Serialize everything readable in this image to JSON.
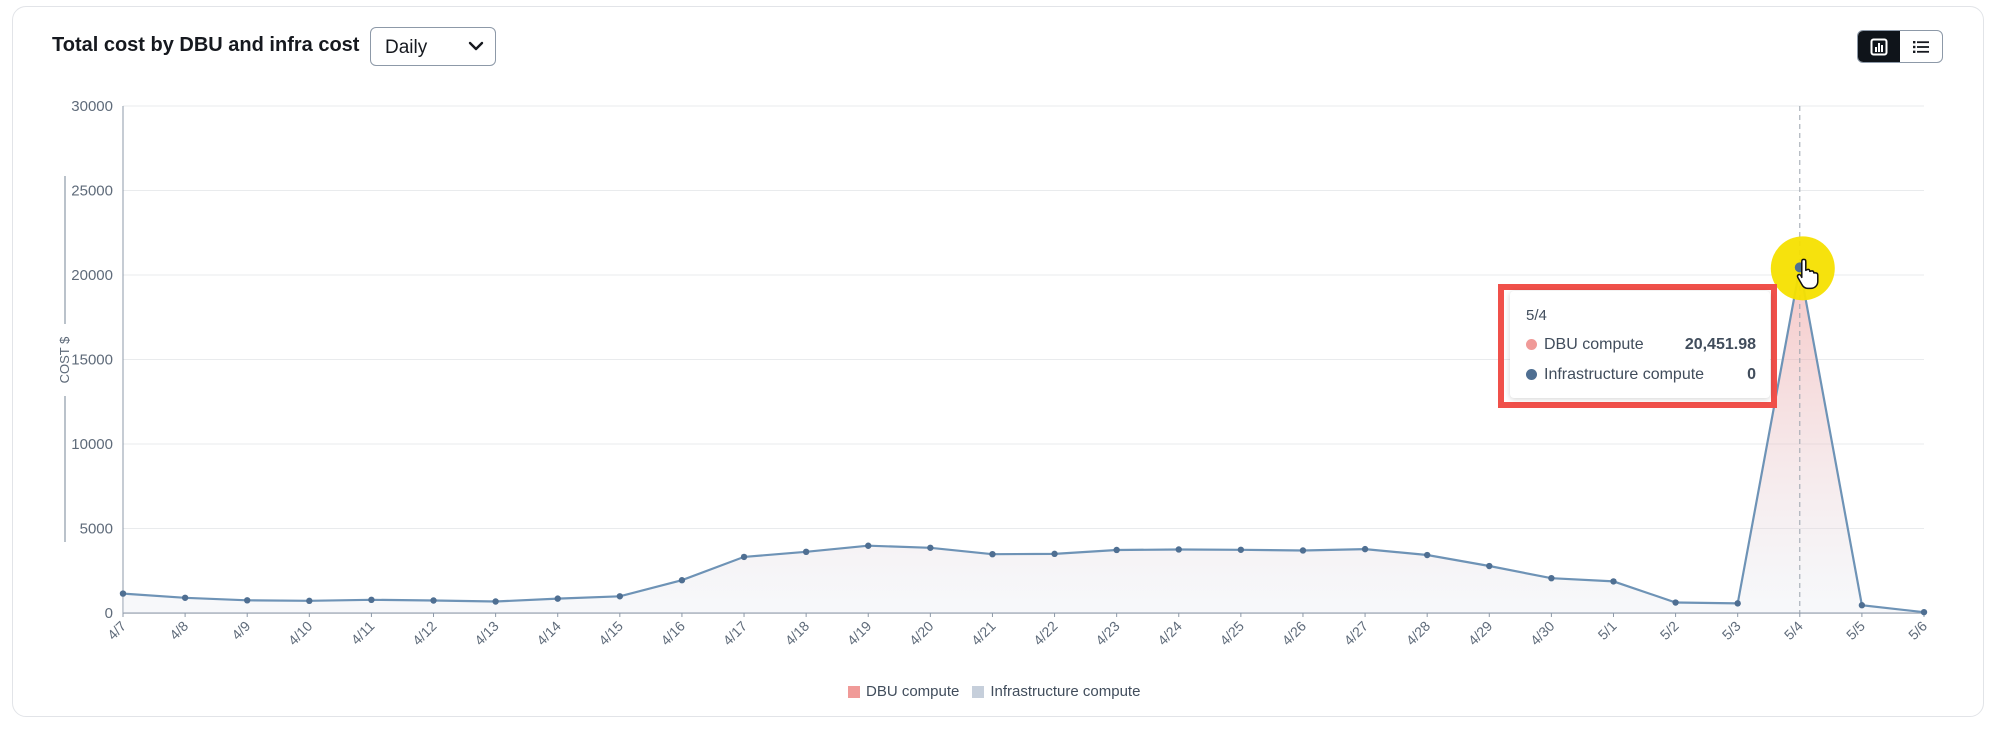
{
  "header": {
    "title": "Total cost by DBU and infra cost",
    "granularity": "Daily",
    "views": [
      "chart-view",
      "list-view"
    ]
  },
  "colors": {
    "dbu": "#f09a98",
    "infra": "#c6cfdb",
    "line": "#6e93b6",
    "highlight": "#f5e000",
    "tooltip_border": "#f0504a"
  },
  "tooltip": {
    "date": "5/4",
    "rows": [
      {
        "label": "DBU compute",
        "value": "20,451.98",
        "color": "#f09a98"
      },
      {
        "label": "Infrastructure compute",
        "value": "0",
        "color": "#4f6f92"
      }
    ]
  },
  "legend": [
    {
      "label": "DBU compute",
      "color": "#f09a98"
    },
    {
      "label": "Infrastructure compute",
      "color": "#c6cfdb"
    }
  ],
  "chart_data": {
    "type": "area",
    "ylabel": "COST $",
    "xlabel": "",
    "ylim": [
      0,
      30000
    ],
    "yticks": [
      0,
      5000,
      10000,
      15000,
      20000,
      25000,
      30000
    ],
    "grid": true,
    "legend_position": "bottom",
    "categories": [
      "4/7",
      "4/8",
      "4/9",
      "4/10",
      "4/11",
      "4/12",
      "4/13",
      "4/14",
      "4/15",
      "4/16",
      "4/17",
      "4/18",
      "4/19",
      "4/20",
      "4/21",
      "4/22",
      "4/23",
      "4/24",
      "4/25",
      "4/26",
      "4/27",
      "4/28",
      "4/29",
      "4/30",
      "5/1",
      "5/2",
      "5/3",
      "5/4",
      "5/5",
      "5/6"
    ],
    "series": [
      {
        "name": "DBU compute",
        "values": [
          1150,
          900,
          750,
          720,
          780,
          740,
          680,
          850,
          990,
          1940,
          3320,
          3620,
          3980,
          3860,
          3480,
          3500,
          3730,
          3760,
          3740,
          3700,
          3780,
          3430,
          2780,
          2060,
          1870,
          620,
          570,
          20452,
          460,
          50
        ]
      },
      {
        "name": "Infrastructure compute",
        "values": [
          0,
          0,
          0,
          0,
          0,
          0,
          0,
          0,
          0,
          0,
          0,
          0,
          0,
          0,
          0,
          0,
          0,
          0,
          0,
          0,
          0,
          0,
          0,
          0,
          0,
          0,
          0,
          0,
          0,
          0
        ]
      }
    ],
    "highlight": {
      "category": "5/4",
      "value": 20451.98
    }
  }
}
